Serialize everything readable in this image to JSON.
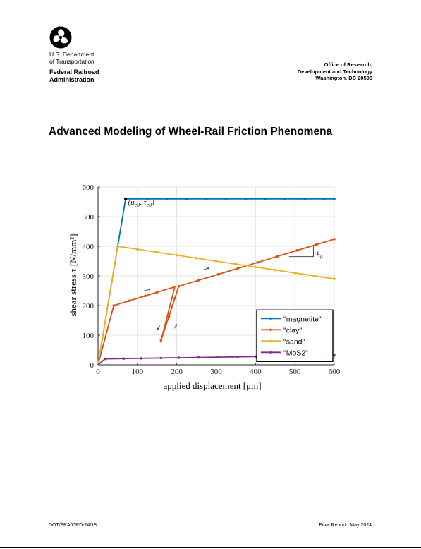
{
  "header": {
    "dept_line1": "U.S. Department",
    "dept_line2": "of Transportation",
    "agency_line1": "Federal Railroad",
    "agency_line2": "Administration",
    "office_line1": "Office of Research,",
    "office_line2": "Development and Technology",
    "office_line3": "Washington, DC 20590"
  },
  "title": "Advanced Modeling of Wheel-Rail Friction Phenomena",
  "footer": {
    "report_number": "DOT/FRA/ORD-24/18",
    "report_info": "Final Report | May 2024"
  },
  "chart_data": {
    "type": "line",
    "xlabel": "applied displacement [μm]",
    "ylabel": "shear stress τ [N/mm²]",
    "xlim": [
      0,
      600
    ],
    "ylim": [
      0,
      600
    ],
    "xticks": [
      "0",
      "100",
      "200",
      "300",
      "400",
      "500",
      "600"
    ],
    "yticks": [
      "0",
      "100",
      "200",
      "300",
      "400",
      "500",
      "600"
    ],
    "grid": true,
    "legend_position": "bottom-right",
    "annotations": {
      "point_label": "(u_c0, τ_c0)",
      "slope_label": "k_u"
    },
    "series": [
      {
        "name": "\"magnetite\"",
        "color": "#0072BD",
        "x": [
          0,
          70,
          600
        ],
        "y": [
          0,
          560,
          560
        ],
        "marker_x": [
          70,
          125,
          175,
          225,
          275,
          325,
          375,
          425,
          475,
          525,
          575,
          600
        ]
      },
      {
        "name": "\"clay\"",
        "color": "#D95319",
        "x": [
          0,
          40,
          195,
          160,
          205,
          600
        ],
        "y": [
          0,
          200,
          263,
          82,
          265,
          424
        ],
        "marker_x": [
          40,
          80,
          120,
          150,
          180,
          195,
          160,
          205,
          255,
          305,
          355,
          405,
          455,
          505,
          555,
          600
        ]
      },
      {
        "name": "\"sand\"",
        "color": "#EDB120",
        "x": [
          0,
          50,
          600
        ],
        "y": [
          0,
          400,
          290
        ],
        "marker_x": [
          35,
          50,
          100,
          150,
          200,
          250,
          300,
          350,
          400,
          450,
          500,
          550,
          600
        ]
      },
      {
        "name": "\"MoS2\"",
        "color": "#7E2F8E",
        "x": [
          0,
          18,
          600
        ],
        "y": [
          0,
          20,
          32
        ],
        "marker_x": [
          18,
          65,
          110,
          160,
          205,
          255,
          305,
          355,
          400,
          450,
          500,
          550,
          600
        ]
      }
    ]
  }
}
